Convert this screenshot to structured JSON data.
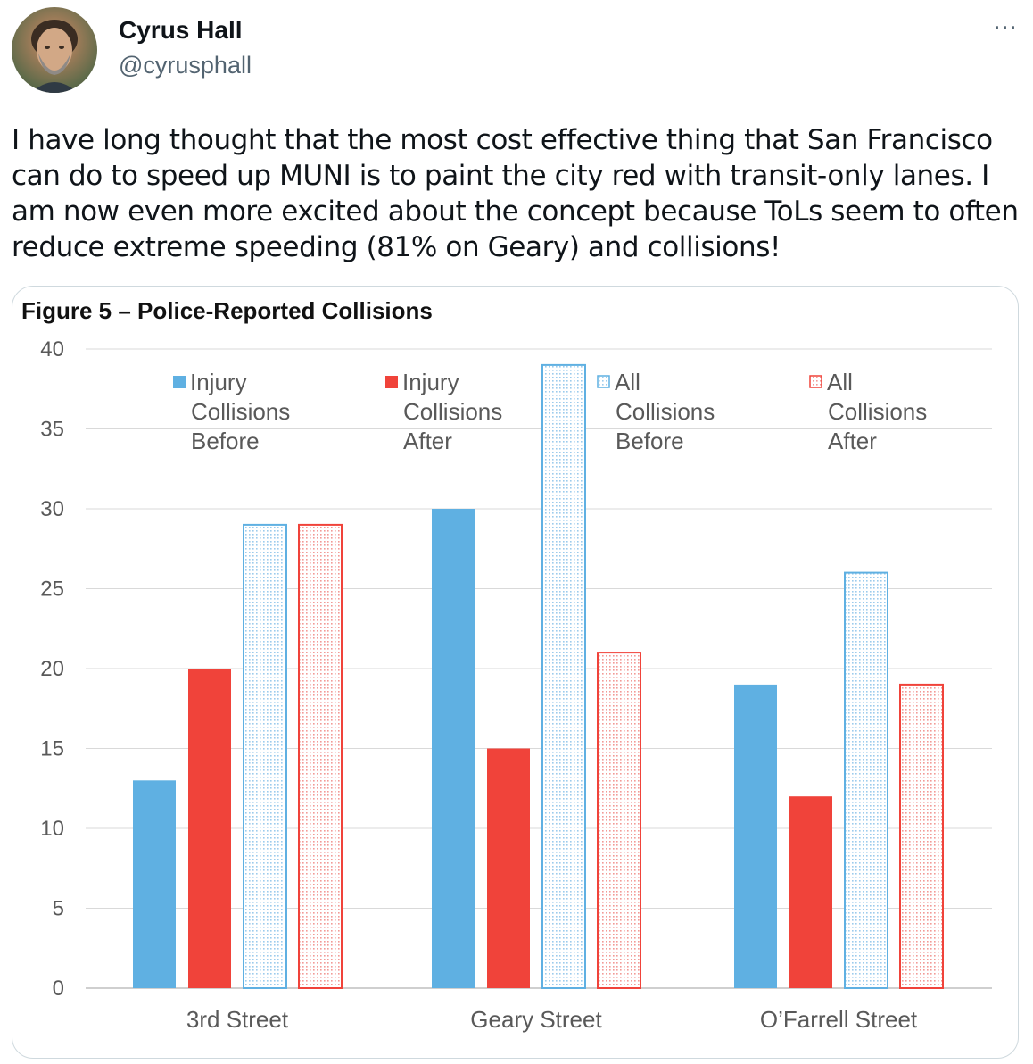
{
  "tweet": {
    "author_name": "Cyrus Hall",
    "author_handle": "@cyrusphall",
    "more_icon": "more-horizontal-icon",
    "more_label": "···",
    "text": "I have long thought that the most cost effective thing that San Francisco can do to speed up MUNI is to paint the city red with transit-only lanes. I am now even more excited about the concept because ToLs seem to often reduce extreme speeding (81% on Geary) and collisions!"
  },
  "chart_data": {
    "type": "bar",
    "title": "Figure 5 – Police-Reported Collisions",
    "xlabel": "",
    "ylabel": "",
    "ylim": [
      0,
      40
    ],
    "yticks": [
      0,
      5,
      10,
      15,
      20,
      25,
      30,
      35,
      40
    ],
    "grid": true,
    "legend_position": "top",
    "categories": [
      "3rd Street",
      "Geary Street",
      "O’Farrell Street"
    ],
    "series": [
      {
        "name": "Injury Collisions Before",
        "legend_lines": [
          "Injury",
          "Collisions",
          "Before"
        ],
        "values": [
          13,
          30,
          19
        ],
        "color": "#5fb0e2",
        "pattern": "solid"
      },
      {
        "name": "Injury Collisions After",
        "legend_lines": [
          "Injury",
          "Collisions",
          "After"
        ],
        "values": [
          20,
          15,
          12
        ],
        "color": "#f0433a",
        "pattern": "solid"
      },
      {
        "name": "All Collisions Before",
        "legend_lines": [
          "All",
          "Collisions",
          "Before"
        ],
        "values": [
          29,
          39,
          26
        ],
        "color": "#5fb0e2",
        "pattern": "dotted"
      },
      {
        "name": "All Collisions After",
        "legend_lines": [
          "All",
          "Collisions",
          "After"
        ],
        "values": [
          29,
          21,
          19
        ],
        "color": "#f0433a",
        "pattern": "dotted"
      }
    ]
  }
}
